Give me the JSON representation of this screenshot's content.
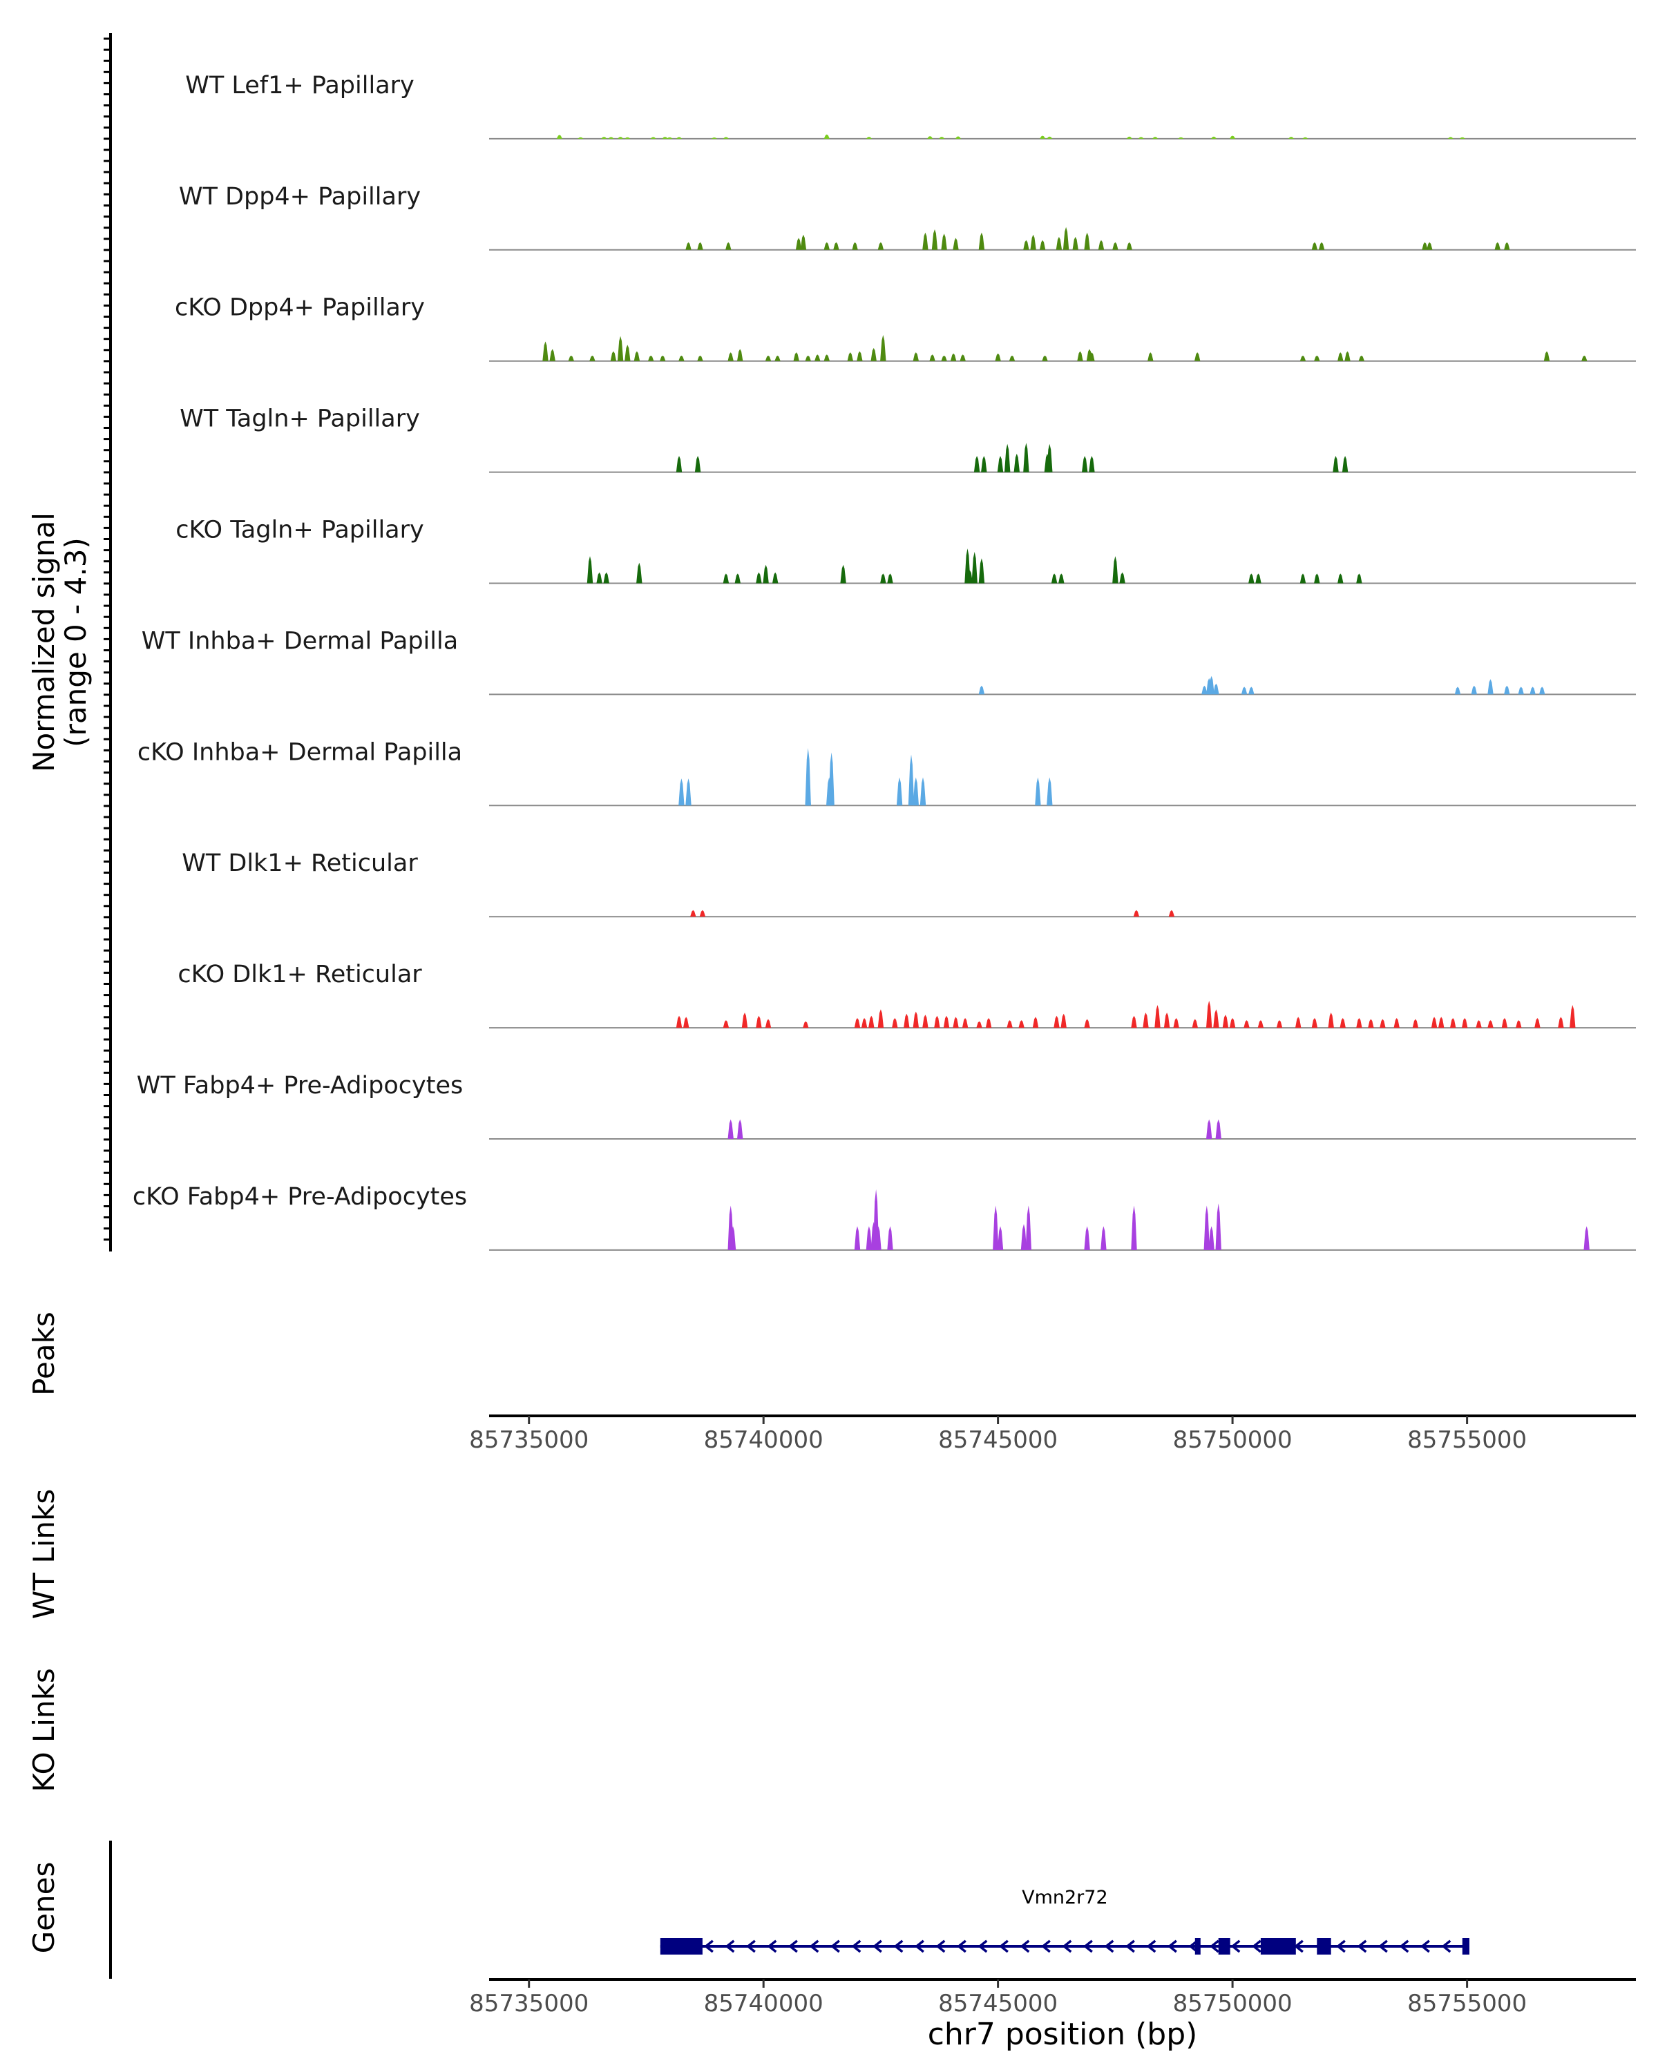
{
  "chart_data": {
    "type": "area",
    "title": "",
    "ylabel_line1": "Normalized signal",
    "ylabel_line2": "(range 0 - 4.3)",
    "ylim": [
      0,
      4.3
    ],
    "xlim": [
      85734150,
      85758600
    ],
    "xlabel": "chr7 position (bp)",
    "x_ticks": [
      {
        "value": 85735000,
        "label": "85735000"
      },
      {
        "value": 85740000,
        "label": "85740000"
      },
      {
        "value": 85745000,
        "label": "85745000"
      },
      {
        "value": 85750000,
        "label": "85750000"
      },
      {
        "value": 85755000,
        "label": "85755000"
      }
    ],
    "series": [
      {
        "name": "WT Lef1+ Papillary",
        "color": "#7ACD1E",
        "peaks": [
          [
            85735650,
            0.18
          ],
          [
            85736100,
            0.07
          ],
          [
            85736600,
            0.09
          ],
          [
            85736750,
            0.08
          ],
          [
            85736950,
            0.09
          ],
          [
            85737100,
            0.07
          ],
          [
            85737650,
            0.08
          ],
          [
            85737900,
            0.09
          ],
          [
            85738000,
            0.07
          ],
          [
            85738200,
            0.08
          ],
          [
            85738950,
            0.06
          ],
          [
            85739200,
            0.08
          ],
          [
            85741350,
            0.2
          ],
          [
            85742250,
            0.09
          ],
          [
            85743550,
            0.12
          ],
          [
            85743800,
            0.09
          ],
          [
            85744150,
            0.11
          ],
          [
            85745950,
            0.14
          ],
          [
            85746100,
            0.1
          ],
          [
            85747800,
            0.1
          ],
          [
            85748050,
            0.08
          ],
          [
            85748350,
            0.09
          ],
          [
            85748900,
            0.07
          ],
          [
            85749600,
            0.1
          ],
          [
            85750000,
            0.14
          ],
          [
            85751250,
            0.09
          ],
          [
            85751550,
            0.07
          ],
          [
            85754650,
            0.08
          ],
          [
            85754900,
            0.07
          ]
        ]
      },
      {
        "name": "WT Dpp4+ Papillary",
        "color": "#4E8A10",
        "peaks": [
          [
            85738400,
            0.35
          ],
          [
            85738650,
            0.35
          ],
          [
            85739250,
            0.35
          ],
          [
            85740750,
            0.55
          ],
          [
            85740850,
            0.7
          ],
          [
            85741350,
            0.35
          ],
          [
            85741550,
            0.35
          ],
          [
            85741950,
            0.35
          ],
          [
            85742500,
            0.35
          ],
          [
            85743450,
            0.8
          ],
          [
            85743650,
            0.95
          ],
          [
            85743850,
            0.75
          ],
          [
            85744100,
            0.55
          ],
          [
            85744650,
            0.8
          ],
          [
            85745600,
            0.45
          ],
          [
            85745750,
            0.7
          ],
          [
            85745950,
            0.45
          ],
          [
            85746300,
            0.6
          ],
          [
            85746450,
            1.05
          ],
          [
            85746650,
            0.6
          ],
          [
            85746900,
            0.8
          ],
          [
            85747200,
            0.45
          ],
          [
            85747500,
            0.35
          ],
          [
            85747800,
            0.35
          ],
          [
            85751750,
            0.35
          ],
          [
            85751900,
            0.35
          ],
          [
            85754100,
            0.35
          ],
          [
            85754200,
            0.35
          ],
          [
            85755650,
            0.35
          ],
          [
            85755850,
            0.35
          ]
        ]
      },
      {
        "name": "cKO Dpp4+ Papillary",
        "color": "#4E8A10",
        "peaks": [
          [
            85735350,
            0.9
          ],
          [
            85735500,
            0.55
          ],
          [
            85735900,
            0.25
          ],
          [
            85736350,
            0.25
          ],
          [
            85736800,
            0.45
          ],
          [
            85736950,
            1.15
          ],
          [
            85737100,
            0.75
          ],
          [
            85737300,
            0.45
          ],
          [
            85737600,
            0.25
          ],
          [
            85737850,
            0.25
          ],
          [
            85738250,
            0.25
          ],
          [
            85738650,
            0.25
          ],
          [
            85739300,
            0.4
          ],
          [
            85739500,
            0.55
          ],
          [
            85740100,
            0.25
          ],
          [
            85740300,
            0.25
          ],
          [
            85740700,
            0.4
          ],
          [
            85740950,
            0.25
          ],
          [
            85741150,
            0.3
          ],
          [
            85741350,
            0.3
          ],
          [
            85741850,
            0.4
          ],
          [
            85742050,
            0.45
          ],
          [
            85742350,
            0.6
          ],
          [
            85742550,
            1.2
          ],
          [
            85743250,
            0.4
          ],
          [
            85743600,
            0.3
          ],
          [
            85743850,
            0.25
          ],
          [
            85744050,
            0.35
          ],
          [
            85744250,
            0.3
          ],
          [
            85745000,
            0.35
          ],
          [
            85745300,
            0.25
          ],
          [
            85746000,
            0.25
          ],
          [
            85746750,
            0.45
          ],
          [
            85746950,
            0.55
          ],
          [
            85747000,
            0.4
          ],
          [
            85748250,
            0.4
          ],
          [
            85749250,
            0.4
          ],
          [
            85751500,
            0.25
          ],
          [
            85751800,
            0.25
          ],
          [
            85752300,
            0.4
          ],
          [
            85752450,
            0.45
          ],
          [
            85752750,
            0.25
          ],
          [
            85756700,
            0.45
          ],
          [
            85757500,
            0.25
          ]
        ]
      },
      {
        "name": "WT Tagln+ Papillary",
        "color": "#166A0C",
        "peaks": [
          [
            85738200,
            0.75
          ],
          [
            85738600,
            0.75
          ],
          [
            85744550,
            0.75
          ],
          [
            85744700,
            0.75
          ],
          [
            85745050,
            0.75
          ],
          [
            85745200,
            1.3
          ],
          [
            85745400,
            0.85
          ],
          [
            85745600,
            1.35
          ],
          [
            85746100,
            1.3
          ],
          [
            85746050,
            0.85
          ],
          [
            85746850,
            0.75
          ],
          [
            85747000,
            0.75
          ],
          [
            85752200,
            0.75
          ],
          [
            85752400,
            0.75
          ]
        ]
      },
      {
        "name": "cKO Tagln+ Papillary",
        "color": "#166A0C",
        "peaks": [
          [
            85736300,
            1.25
          ],
          [
            85736500,
            0.5
          ],
          [
            85736650,
            0.5
          ],
          [
            85737350,
            0.95
          ],
          [
            85739200,
            0.45
          ],
          [
            85739450,
            0.45
          ],
          [
            85739900,
            0.5
          ],
          [
            85740050,
            0.85
          ],
          [
            85740250,
            0.5
          ],
          [
            85741700,
            0.85
          ],
          [
            85742550,
            0.45
          ],
          [
            85742700,
            0.45
          ],
          [
            85744350,
            1.6
          ],
          [
            85744500,
            1.45
          ],
          [
            85744650,
            1.15
          ],
          [
            85744400,
            0.6
          ],
          [
            85746200,
            0.45
          ],
          [
            85746350,
            0.45
          ],
          [
            85747500,
            1.25
          ],
          [
            85747650,
            0.5
          ],
          [
            85750400,
            0.45
          ],
          [
            85750550,
            0.45
          ],
          [
            85751500,
            0.45
          ],
          [
            85751800,
            0.45
          ],
          [
            85752300,
            0.45
          ],
          [
            85752700,
            0.45
          ]
        ]
      },
      {
        "name": "WT Inhba+ Dermal Papilla",
        "color": "#5BA9E4",
        "peaks": [
          [
            85744650,
            0.4
          ],
          [
            85749400,
            0.4
          ],
          [
            85749500,
            0.75
          ],
          [
            85749550,
            0.85
          ],
          [
            85749650,
            0.5
          ],
          [
            85750250,
            0.35
          ],
          [
            85750400,
            0.35
          ],
          [
            85754800,
            0.35
          ],
          [
            85755150,
            0.4
          ],
          [
            85755500,
            0.7
          ],
          [
            85755850,
            0.4
          ],
          [
            85756150,
            0.35
          ],
          [
            85756400,
            0.35
          ],
          [
            85756600,
            0.35
          ]
        ]
      },
      {
        "name": "cKO Inhba+ Dermal Papilla",
        "color": "#5BA9E4",
        "peaks": [
          [
            85738250,
            1.25
          ],
          [
            85738400,
            1.25
          ],
          [
            85740950,
            2.65
          ],
          [
            85740950,
            1.3
          ],
          [
            85741450,
            2.45
          ],
          [
            85741400,
            1.3
          ],
          [
            85742900,
            1.3
          ],
          [
            85743150,
            2.35
          ],
          [
            85743250,
            1.3
          ],
          [
            85743400,
            1.3
          ],
          [
            85745850,
            1.3
          ],
          [
            85746100,
            1.3
          ]
        ]
      },
      {
        "name": "WT Dlk1+ Reticular",
        "color": "#F02828",
        "peaks": [
          [
            85738500,
            0.3
          ],
          [
            85738700,
            0.3
          ],
          [
            85747950,
            0.3
          ],
          [
            85748700,
            0.3
          ]
        ]
      },
      {
        "name": "cKO Dlk1+ Reticular",
        "color": "#F02828",
        "peaks": [
          [
            85738200,
            0.55
          ],
          [
            85738350,
            0.5
          ],
          [
            85739200,
            0.35
          ],
          [
            85739600,
            0.7
          ],
          [
            85739900,
            0.55
          ],
          [
            85740100,
            0.4
          ],
          [
            85740900,
            0.3
          ],
          [
            85742000,
            0.45
          ],
          [
            85742150,
            0.45
          ],
          [
            85742300,
            0.55
          ],
          [
            85742500,
            0.85
          ],
          [
            85742800,
            0.45
          ],
          [
            85743050,
            0.65
          ],
          [
            85743250,
            0.75
          ],
          [
            85743450,
            0.6
          ],
          [
            85743700,
            0.55
          ],
          [
            85743900,
            0.55
          ],
          [
            85744100,
            0.5
          ],
          [
            85744300,
            0.45
          ],
          [
            85744600,
            0.3
          ],
          [
            85744800,
            0.45
          ],
          [
            85745250,
            0.35
          ],
          [
            85745500,
            0.35
          ],
          [
            85745800,
            0.5
          ],
          [
            85746250,
            0.55
          ],
          [
            85746400,
            0.65
          ],
          [
            85746900,
            0.4
          ],
          [
            85747900,
            0.55
          ],
          [
            85748150,
            0.7
          ],
          [
            85748400,
            1.05
          ],
          [
            85748600,
            0.7
          ],
          [
            85748800,
            0.45
          ],
          [
            85749200,
            0.4
          ],
          [
            85749500,
            1.25
          ],
          [
            85749650,
            0.85
          ],
          [
            85749850,
            0.6
          ],
          [
            85750000,
            0.45
          ],
          [
            85750300,
            0.35
          ],
          [
            85750600,
            0.35
          ],
          [
            85751000,
            0.35
          ],
          [
            85751400,
            0.5
          ],
          [
            85751750,
            0.45
          ],
          [
            85752100,
            0.7
          ],
          [
            85752350,
            0.45
          ],
          [
            85752700,
            0.45
          ],
          [
            85752950,
            0.4
          ],
          [
            85753200,
            0.4
          ],
          [
            85753500,
            0.45
          ],
          [
            85753900,
            0.4
          ],
          [
            85754300,
            0.5
          ],
          [
            85754450,
            0.5
          ],
          [
            85754700,
            0.45
          ],
          [
            85754950,
            0.45
          ],
          [
            85755250,
            0.35
          ],
          [
            85755500,
            0.35
          ],
          [
            85755800,
            0.45
          ],
          [
            85756100,
            0.35
          ],
          [
            85756500,
            0.45
          ],
          [
            85757000,
            0.5
          ],
          [
            85757250,
            1.05
          ]
        ]
      },
      {
        "name": "WT Fabp4+ Pre-Adipocytes",
        "color": "#A840E0",
        "peaks": [
          [
            85739300,
            0.9
          ],
          [
            85739500,
            0.9
          ],
          [
            85749500,
            0.9
          ],
          [
            85749700,
            0.9
          ]
        ]
      },
      {
        "name": "cKO Fabp4+ Pre-Adipocytes",
        "color": "#A840E0",
        "peaks": [
          [
            85739300,
            2.05
          ],
          [
            85739350,
            1.1
          ],
          [
            85742000,
            1.1
          ],
          [
            85742250,
            1.1
          ],
          [
            85742350,
            1.3
          ],
          [
            85742400,
            2.8
          ],
          [
            85742450,
            1.1
          ],
          [
            85742700,
            1.1
          ],
          [
            85744950,
            2.05
          ],
          [
            85745050,
            1.1
          ],
          [
            85745550,
            1.2
          ],
          [
            85745650,
            2.05
          ],
          [
            85746900,
            1.1
          ],
          [
            85747250,
            1.1
          ],
          [
            85747900,
            2.05
          ],
          [
            85749450,
            2.05
          ],
          [
            85749700,
            2.15
          ],
          [
            85749550,
            1.1
          ],
          [
            85757550,
            1.1
          ]
        ]
      }
    ],
    "peaks_track_label": "Peaks",
    "links_tracks": [
      {
        "label": "WT Links"
      },
      {
        "label": "KO Links"
      }
    ],
    "genes_track_label": "Genes",
    "gene": {
      "name": "Vmn2r72",
      "start": 85737800,
      "end": 85755050,
      "strand": "-",
      "exons": [
        [
          85737800,
          85738700
        ],
        [
          85749200,
          85749300
        ],
        [
          85749700,
          85749950
        ],
        [
          85750600,
          85751350
        ],
        [
          85751800,
          85752100
        ],
        [
          85754900,
          85755050
        ]
      ],
      "color": "#00007F"
    }
  }
}
